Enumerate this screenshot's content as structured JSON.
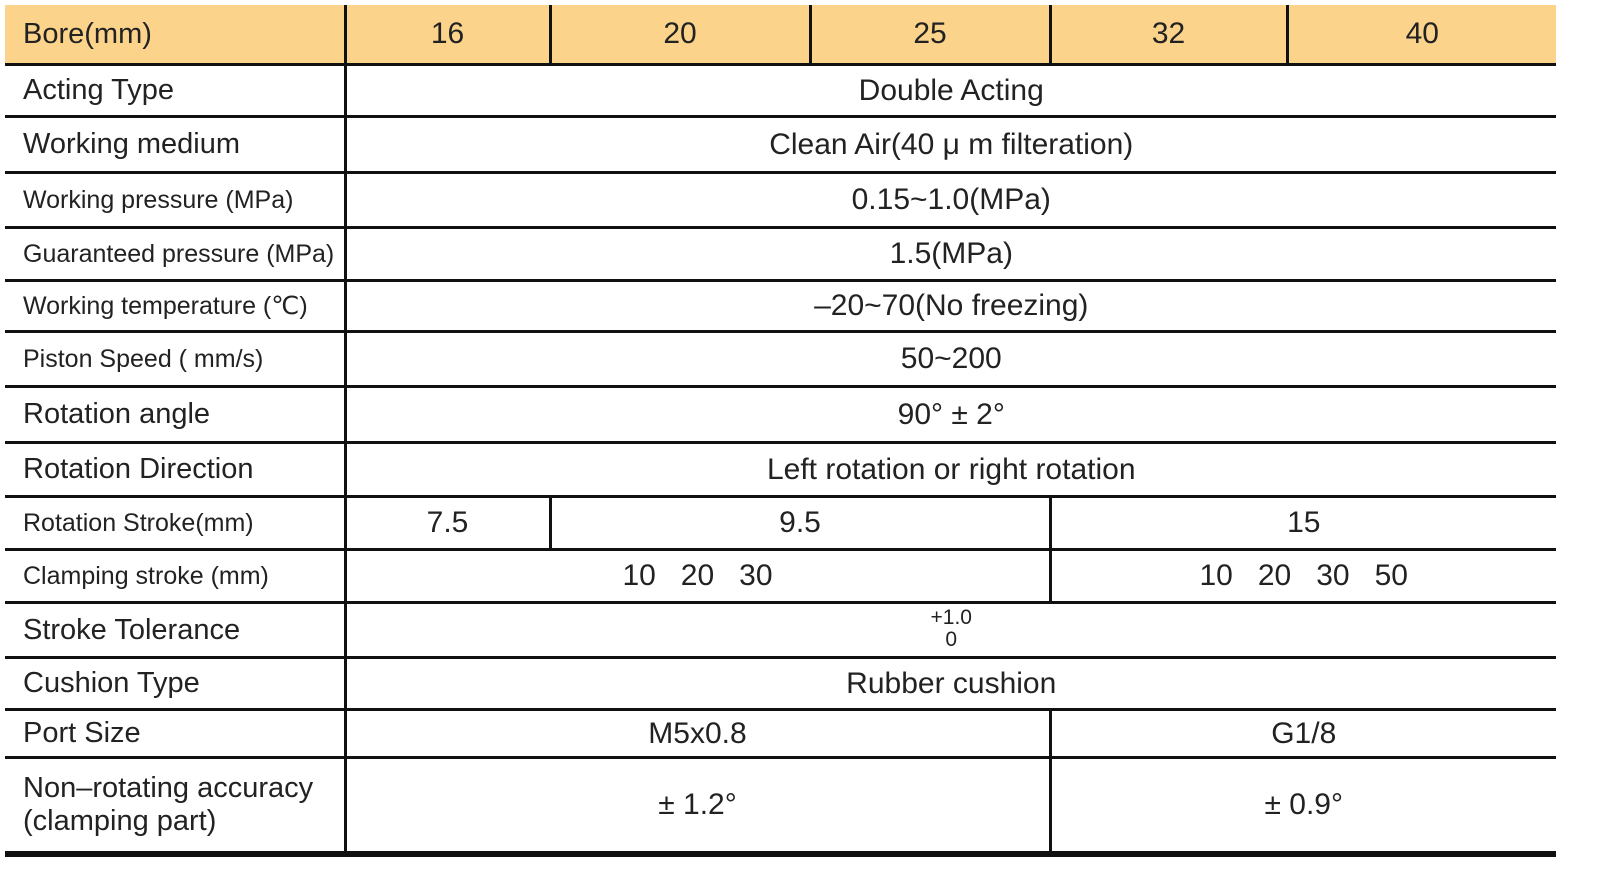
{
  "header": {
    "label": "Bore(mm)",
    "bores": [
      "16",
      "20",
      "25",
      "32",
      "40"
    ]
  },
  "rows": [
    {
      "label": "Acting Type",
      "cells": [
        "Double Acting"
      ]
    },
    {
      "label": "Working medium",
      "cells": [
        "Clean Air(40 μ m filteration)"
      ]
    },
    {
      "label": "Working pressure (MPa)",
      "cells": [
        "0.15~1.0(MPa)"
      ]
    },
    {
      "label": "Guaranteed pressure (MPa)",
      "cells": [
        "1.5(MPa)"
      ]
    },
    {
      "label": "Working temperature (℃)",
      "cells": [
        "–20~70(No freezing)"
      ]
    },
    {
      "label": "Piston Speed ( mm/s)",
      "cells": [
        "50~200"
      ]
    },
    {
      "label": "Rotation angle",
      "cells": [
        "90° ± 2°"
      ]
    },
    {
      "label": "Rotation Direction",
      "cells": [
        "Left rotation or right rotation"
      ]
    },
    {
      "label": "Rotation Stroke(mm)",
      "cells": [
        "7.5",
        "9.5",
        "15"
      ]
    },
    {
      "label": "Clamping stroke (mm)",
      "cells": [
        "10   20   30",
        "10   20   30   50"
      ]
    },
    {
      "label": "Stroke Tolerance",
      "cells": [
        {
          "upper": "+1.0",
          "lower": "0"
        }
      ]
    },
    {
      "label": "Cushion Type",
      "cells": [
        "Rubber cushion"
      ]
    },
    {
      "label": "Port Size",
      "cells": [
        "M5x0.8",
        "G1/8"
      ]
    },
    {
      "label": [
        "Non–rotating accuracy",
        "(clamping part)"
      ],
      "cells": [
        "± 1.2°",
        "± 0.9°"
      ]
    }
  ]
}
